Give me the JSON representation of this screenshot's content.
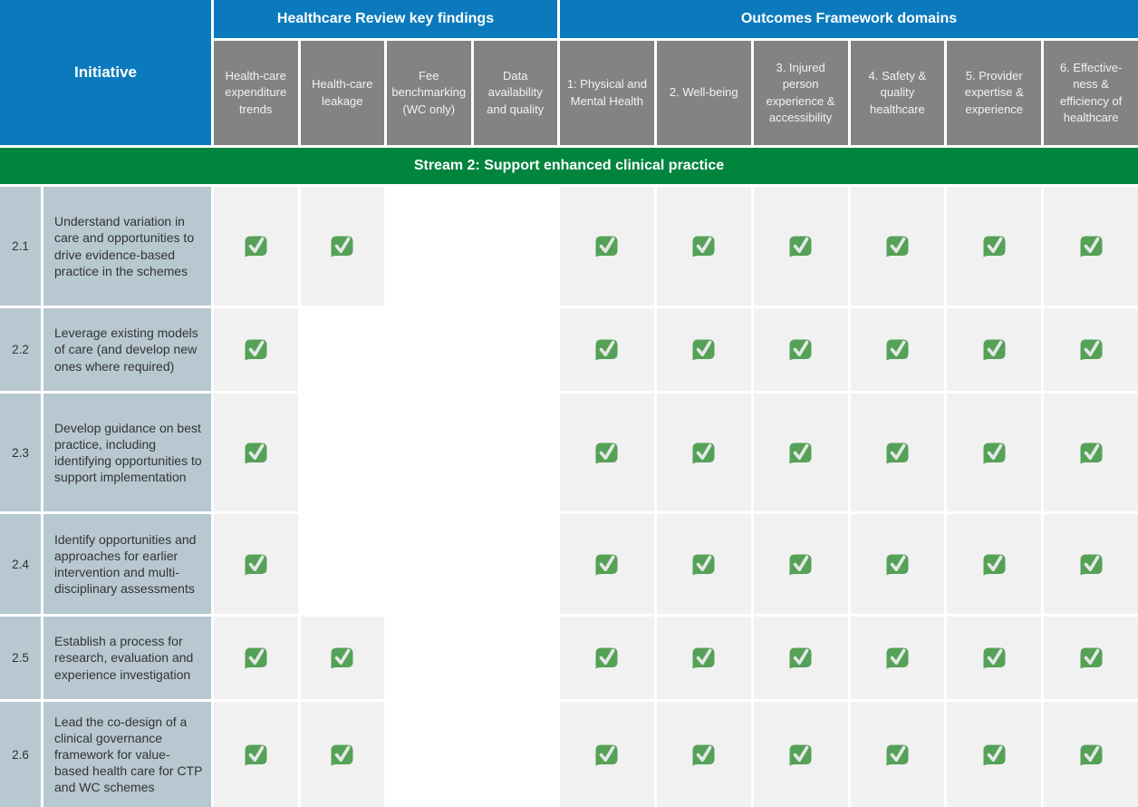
{
  "table": {
    "initiative_header": "Initiative",
    "findings_group_header": "Healthcare Review key findings",
    "outcomes_group_header": "Outcomes Framework domains",
    "findings_columns": [
      "Health-care expenditure trends",
      "Health-care leakage",
      "Fee benchmarking (WC only)",
      "Data availability and quality"
    ],
    "outcomes_columns": [
      "1: Physical and Mental Health",
      "2. Well-being",
      "3. Injured person experience & accessibility",
      "4. Safety & quality healthcare",
      "5. Provider expertise & experience",
      "6. Effective-ness & efficiency of healthcare"
    ],
    "stream_banner": "Stream 2: Support enhanced clinical practice",
    "rows": [
      {
        "num": "2.1",
        "desc": "Understand variation in care and opportunities to drive evidence-based practice in the schemes",
        "findings": [
          true,
          true,
          false,
          false
        ],
        "outcomes": [
          true,
          true,
          true,
          true,
          true,
          true
        ]
      },
      {
        "num": "2.2",
        "desc": "Leverage existing models of care (and develop new ones where required)",
        "findings": [
          true,
          false,
          false,
          false
        ],
        "outcomes": [
          true,
          true,
          true,
          true,
          true,
          true
        ]
      },
      {
        "num": "2.3",
        "desc": "Develop guidance on best practice, including identifying opportunities to support implementation",
        "findings": [
          true,
          false,
          false,
          false
        ],
        "outcomes": [
          true,
          true,
          true,
          true,
          true,
          true
        ]
      },
      {
        "num": "2.4",
        "desc": "Identify opportunities and approaches for earlier intervention and multi-disciplinary assessments",
        "findings": [
          true,
          false,
          false,
          false
        ],
        "outcomes": [
          true,
          true,
          true,
          true,
          true,
          true
        ]
      },
      {
        "num": "2.5",
        "desc": "Establish a process for research, evaluation and experience investigation",
        "findings": [
          true,
          true,
          false,
          false
        ],
        "outcomes": [
          true,
          true,
          true,
          true,
          true,
          true
        ]
      },
      {
        "num": "2.6",
        "desc": "Lead the co-design of a clinical governance framework for value-based health care for CTP and WC schemes",
        "findings": [
          true,
          true,
          false,
          false
        ],
        "outcomes": [
          true,
          true,
          true,
          true,
          true,
          true
        ]
      }
    ],
    "icons": {
      "check": "green-check-icon"
    },
    "colors": {
      "header_blue": "#0b7abd",
      "header_gray": "#838383",
      "stream_green": "#00843e",
      "row_label_blue": "#b8c8d1",
      "checked_cell_gray": "#f1f1f1",
      "check_green": "#55a157"
    }
  }
}
